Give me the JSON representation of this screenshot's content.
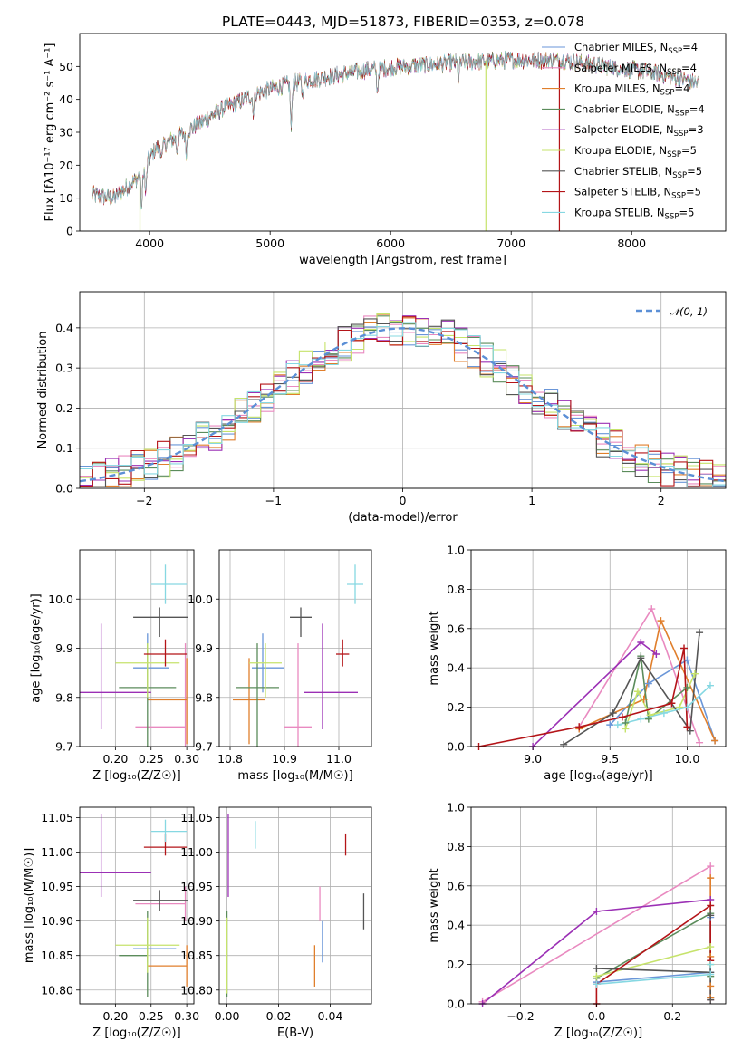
{
  "title": "PLATE=0443, MJD=51873, FIBERID=0353, z=0.078",
  "colors": [
    "#6a96d8",
    "#e98ac0",
    "#e07f2c",
    "#5b8c5b",
    "#9b30b5",
    "#c6e36b",
    "#555555",
    "#b41418",
    "#86d8e2"
  ],
  "chart_data": [
    {
      "id": "spectrum",
      "type": "line",
      "xlabel": "wavelength [Angstrom, rest frame]",
      "ylabel": "Flux [fλ10⁻¹⁷ erg cm⁻² s⁻¹ A⁻¹]",
      "xlim": [
        3420,
        8780
      ],
      "ylim": [
        0,
        60
      ],
      "xticks": [
        4000,
        5000,
        6000,
        7000,
        8000
      ],
      "yticks": [
        0,
        10,
        20,
        30,
        40,
        50
      ],
      "legend_position": "right",
      "series": [
        {
          "name": "Chabrier MILES, N_SSP=4"
        },
        {
          "name": "Salpeter MILES, N_SSP=4"
        },
        {
          "name": "Kroupa MILES, N_SSP=4"
        },
        {
          "name": "Chabrier ELODIE, N_SSP=4"
        },
        {
          "name": "Salpeter ELODIE, N_SSP=3"
        },
        {
          "name": "Kroupa ELODIE, N_SSP=5"
        },
        {
          "name": "Chabrier STELIB, N_SSP=5"
        },
        {
          "name": "Salpeter STELIB, N_SSP=5"
        },
        {
          "name": "Kroupa STELIB, N_SSP=5"
        }
      ],
      "continuum_anchors": [
        [
          3520,
          11
        ],
        [
          3700,
          10
        ],
        [
          3900,
          16
        ],
        [
          4050,
          25
        ],
        [
          4300,
          30
        ],
        [
          4600,
          37
        ],
        [
          4900,
          42
        ],
        [
          5200,
          45
        ],
        [
          5500,
          47
        ],
        [
          5800,
          49
        ],
        [
          6100,
          50
        ],
        [
          6500,
          51
        ],
        [
          7000,
          52
        ],
        [
          7400,
          52
        ],
        [
          7800,
          50
        ],
        [
          8200,
          48
        ],
        [
          8550,
          45
        ]
      ],
      "absorption_lines": [
        [
          3934,
          11
        ],
        [
          3968,
          9
        ],
        [
          4102,
          4
        ],
        [
          4227,
          4
        ],
        [
          4304,
          6
        ],
        [
          4861,
          5
        ],
        [
          5175,
          14
        ],
        [
          5270,
          4
        ],
        [
          5890,
          7
        ],
        [
          6563,
          5
        ]
      ],
      "dropouts": [
        {
          "series": "Kroupa ELODIE, N_SSP=5",
          "x": 3920
        },
        {
          "series": "Kroupa ELODIE, N_SSP=5",
          "x": 6790
        },
        {
          "series": "Salpeter STELIB, N_SSP=5",
          "x": 7400
        }
      ]
    },
    {
      "id": "residual-histogram",
      "type": "histogram",
      "xlabel": "(data-model)/error",
      "ylabel": "Normed distribution",
      "xlim": [
        -2.5,
        2.5
      ],
      "ylim": [
        0,
        0.49
      ],
      "xticks": [
        -2,
        -1,
        0,
        1,
        2
      ],
      "yticks": [
        0.0,
        0.1,
        0.2,
        0.3,
        0.4
      ],
      "grid": true,
      "bin_width": 0.1,
      "legend": {
        "label": "𝒩(0, 1)",
        "position": "top-right"
      },
      "gaussian": {
        "mean": 0,
        "sigma": 1
      }
    },
    {
      "id": "age-vs-Z",
      "type": "scatter",
      "xlabel": "Z [log₁₀(Z/Z☉)]",
      "ylabel": "age  [log₁₀(age/yr)]",
      "xlim": [
        0.15,
        0.31
      ],
      "ylim": [
        9.7,
        10.1
      ],
      "xticks": [
        0.2,
        0.25,
        0.3
      ],
      "yticks": [
        9.7,
        9.8,
        9.9,
        10.0
      ],
      "grid": true,
      "points": [
        {
          "x": 0.245,
          "y": 9.86,
          "xerr": [
            0.02,
            0.03
          ],
          "yerr": [
            0.05,
            0.07
          ]
        },
        {
          "x": 0.298,
          "y": 9.74,
          "xerr": [
            0.07,
            0.0
          ],
          "yerr": [
            0.04,
            0.17
          ]
        },
        {
          "x": 0.3,
          "y": 9.795,
          "xerr": [
            0.055,
            0.0
          ],
          "yerr": [
            0.09,
            0.085
          ]
        },
        {
          "x": 0.245,
          "y": 9.82,
          "xerr": [
            0.04,
            0.04
          ],
          "yerr": [
            0.12,
            0.09
          ]
        },
        {
          "x": 0.18,
          "y": 9.81,
          "xerr": [
            0.04,
            0.07
          ],
          "yerr": [
            0.075,
            0.14
          ]
        },
        {
          "x": 0.245,
          "y": 9.87,
          "xerr": [
            0.045,
            0.045
          ],
          "yerr": [
            0.07,
            0.04
          ]
        },
        {
          "x": 0.262,
          "y": 9.963,
          "xerr": [
            0.037,
            0.04
          ],
          "yerr": [
            0.04,
            0.02
          ]
        },
        {
          "x": 0.27,
          "y": 9.888,
          "xerr": [
            0.03,
            0.03
          ],
          "yerr": [
            0.025,
            0.03
          ]
        },
        {
          "x": 0.27,
          "y": 10.03,
          "xerr": [
            0.02,
            0.03
          ],
          "yerr": [
            0.04,
            0.04
          ]
        }
      ]
    },
    {
      "id": "age-vs-mass",
      "type": "scatter",
      "xlabel": "mass [log₁₀(M/M☉)]",
      "ylabel": "",
      "xlim": [
        10.78,
        11.06
      ],
      "ylim": [
        9.7,
        10.1
      ],
      "xticks": [
        10.8,
        10.9,
        11.0
      ],
      "yticks": [
        9.7,
        9.8,
        9.9,
        10.0
      ],
      "grid": true,
      "points": [
        {
          "x": 10.86,
          "y": 9.86,
          "xerr": [
            0.02,
            0.04
          ],
          "yerr": [
            0.05,
            0.07
          ]
        },
        {
          "x": 10.925,
          "y": 9.74,
          "xerr": [
            0.025,
            0.025
          ],
          "yerr": [
            0.04,
            0.17
          ]
        },
        {
          "x": 10.835,
          "y": 9.795,
          "xerr": [
            0.03,
            0.03
          ],
          "yerr": [
            0.09,
            0.085
          ]
        },
        {
          "x": 10.85,
          "y": 9.82,
          "xerr": [
            0.04,
            0.04
          ],
          "yerr": [
            0.12,
            0.09
          ]
        },
        {
          "x": 10.97,
          "y": 9.81,
          "xerr": [
            0.035,
            0.065
          ],
          "yerr": [
            0.075,
            0.14
          ]
        },
        {
          "x": 10.865,
          "y": 9.87,
          "xerr": [
            0.03,
            0.03
          ],
          "yerr": [
            0.07,
            0.04
          ]
        },
        {
          "x": 10.93,
          "y": 9.963,
          "xerr": [
            0.02,
            0.02
          ],
          "yerr": [
            0.04,
            0.02
          ]
        },
        {
          "x": 11.007,
          "y": 9.888,
          "xerr": [
            0.012,
            0.012
          ],
          "yerr": [
            0.025,
            0.03
          ]
        },
        {
          "x": 11.03,
          "y": 10.03,
          "xerr": [
            0.015,
            0.015
          ],
          "yerr": [
            0.04,
            0.04
          ]
        }
      ]
    },
    {
      "id": "mass-weight-vs-age",
      "type": "line",
      "xlabel": "age  [log₁₀(age/yr)]",
      "ylabel": "mass weight",
      "xlim": [
        8.6,
        10.25
      ],
      "ylim": [
        0,
        1
      ],
      "xticks": [
        9.0,
        9.5,
        10.0
      ],
      "yticks": [
        0.0,
        0.2,
        0.4,
        0.6,
        0.8,
        1.0
      ],
      "grid": true,
      "series": [
        {
          "x": [
            9.5,
            9.75,
            10.0,
            10.18
          ],
          "y": [
            0.11,
            0.32,
            0.44,
            0.03
          ]
        },
        {
          "x": [
            9.3,
            9.77,
            10.08
          ],
          "y": [
            0.1,
            0.7,
            0.02
          ]
        },
        {
          "x": [
            9.3,
            9.72,
            9.83,
            10.18
          ],
          "y": [
            0.09,
            0.24,
            0.64,
            0.03
          ]
        },
        {
          "x": [
            9.6,
            9.7,
            9.75,
            10.0
          ],
          "y": [
            0.12,
            0.46,
            0.14,
            0.3
          ]
        },
        {
          "x": [
            9.0,
            9.7,
            9.8
          ],
          "y": [
            0.0,
            0.53,
            0.47
          ]
        },
        {
          "x": [
            9.6,
            9.68,
            9.76,
            9.95,
            10.05
          ],
          "y": [
            0.09,
            0.28,
            0.16,
            0.2,
            0.37
          ]
        },
        {
          "x": [
            9.2,
            9.52,
            9.7,
            10.02,
            10.08
          ],
          "y": [
            0.01,
            0.17,
            0.45,
            0.08,
            0.58
          ]
        },
        {
          "x": [
            8.65,
            9.3,
            9.58,
            9.9,
            9.98,
            10.0
          ],
          "y": [
            0.0,
            0.1,
            0.15,
            0.22,
            0.5,
            0.1
          ]
        },
        {
          "x": [
            9.55,
            9.7,
            9.85,
            10.0,
            10.15
          ],
          "y": [
            0.11,
            0.14,
            0.17,
            0.2,
            0.31
          ]
        }
      ]
    },
    {
      "id": "mass-vs-Z",
      "type": "scatter",
      "xlabel": "Z [log₁₀(Z/Z☉)]",
      "ylabel": "mass [log₁₀(M/M☉)]",
      "xlim": [
        0.15,
        0.31
      ],
      "ylim": [
        10.78,
        11.065
      ],
      "xticks": [
        0.2,
        0.25,
        0.3
      ],
      "yticks": [
        10.8,
        10.85,
        10.9,
        10.95,
        11.0,
        11.05
      ],
      "grid": true,
      "points": [
        {
          "x": 0.245,
          "y": 10.86,
          "xerr": [
            0.02,
            0.04
          ],
          "yerr": [
            0.02,
            0.04
          ]
        },
        {
          "x": 0.298,
          "y": 10.925,
          "xerr": [
            0.07,
            0.0
          ],
          "yerr": [
            0.025,
            0.025
          ]
        },
        {
          "x": 0.3,
          "y": 10.835,
          "xerr": [
            0.055,
            0.0
          ],
          "yerr": [
            0.03,
            0.03
          ]
        },
        {
          "x": 0.245,
          "y": 10.85,
          "xerr": [
            0.04,
            0.0
          ],
          "yerr": [
            0.06,
            0.065
          ]
        },
        {
          "x": 0.18,
          "y": 10.97,
          "xerr": [
            0.04,
            0.07
          ],
          "yerr": [
            0.035,
            0.085
          ]
        },
        {
          "x": 0.245,
          "y": 10.865,
          "xerr": [
            0.045,
            0.045
          ],
          "yerr": [
            0.04,
            0.04
          ]
        },
        {
          "x": 0.262,
          "y": 10.93,
          "xerr": [
            0.037,
            0.04
          ],
          "yerr": [
            0.015,
            0.015
          ]
        },
        {
          "x": 0.27,
          "y": 11.007,
          "xerr": [
            0.03,
            0.03
          ],
          "yerr": [
            0.012,
            0.02
          ]
        },
        {
          "x": 0.27,
          "y": 11.03,
          "xerr": [
            0.02,
            0.03
          ],
          "yerr": [
            0.015,
            0.017
          ]
        }
      ]
    },
    {
      "id": "mass-vs-EBV",
      "type": "scatter",
      "xlabel": "E(B-V)",
      "ylabel": "",
      "xlim": [
        -0.003,
        0.056
      ],
      "ylim": [
        10.78,
        11.065
      ],
      "xticks": [
        0.0,
        0.02,
        0.04
      ],
      "yticks": [
        10.8,
        10.85,
        10.9,
        10.95,
        11.0,
        11.05
      ],
      "grid": true,
      "points": [
        {
          "x": 0.037,
          "y": 10.86,
          "yerr": [
            0.02,
            0.04
          ]
        },
        {
          "x": 0.036,
          "y": 10.925,
          "yerr": [
            0.025,
            0.025
          ]
        },
        {
          "x": 0.034,
          "y": 10.835,
          "yerr": [
            0.03,
            0.03
          ]
        },
        {
          "x": 0.0,
          "y": 10.85,
          "yerr": [
            0.06,
            0.065
          ]
        },
        {
          "x": 0.0005,
          "y": 10.97,
          "yerr": [
            0.035,
            0.085
          ]
        },
        {
          "x": 0.0,
          "y": 10.865,
          "yerr": [
            0.07,
            0.04
          ]
        },
        {
          "x": 0.053,
          "y": 10.913,
          "yerr": [
            0.025,
            0.027
          ]
        },
        {
          "x": 0.046,
          "y": 11.007,
          "yerr": [
            0.012,
            0.02
          ]
        },
        {
          "x": 0.011,
          "y": 11.025,
          "yerr": [
            0.02,
            0.02
          ]
        }
      ]
    },
    {
      "id": "mass-weight-vs-Z",
      "type": "line",
      "xlabel": "Z [log₁₀(Z/Z☉)]",
      "ylabel": "mass weight",
      "xlim": [
        -0.33,
        0.34
      ],
      "ylim": [
        0,
        1
      ],
      "xticks": [
        -0.2,
        0.0,
        0.2
      ],
      "yticks": [
        0.0,
        0.2,
        0.4,
        0.6,
        0.8,
        1.0
      ],
      "grid": true,
      "series": [
        {
          "x": [
            0.0,
            0.3,
            0.3,
            0.3
          ],
          "y": [
            0.11,
            0.16,
            0.44,
            0.03
          ]
        },
        {
          "x": [
            -0.3,
            0.3,
            0.3
          ],
          "y": [
            0.01,
            0.7,
            0.02
          ]
        },
        {
          "x": [
            0.3,
            0.3,
            0.3,
            0.3
          ],
          "y": [
            0.09,
            0.24,
            0.64,
            0.03
          ]
        },
        {
          "x": [
            0.0,
            0.3,
            0.3
          ],
          "y": [
            0.13,
            0.46,
            0.14
          ]
        },
        {
          "x": [
            -0.3,
            0.0,
            0.3
          ],
          "y": [
            0.0,
            0.47,
            0.53
          ]
        },
        {
          "x": [
            0.0,
            0.3,
            0.3
          ],
          "y": [
            0.14,
            0.29,
            0.2
          ]
        },
        {
          "x": [
            0.0,
            0.3,
            0.3,
            0.3
          ],
          "y": [
            0.18,
            0.16,
            0.45,
            0.02
          ]
        },
        {
          "x": [
            0.0,
            0.0,
            0.3,
            0.3
          ],
          "y": [
            0.0,
            0.1,
            0.5,
            0.22
          ]
        },
        {
          "x": [
            0.0,
            0.3,
            0.3
          ],
          "y": [
            0.1,
            0.15,
            0.2
          ]
        }
      ]
    }
  ]
}
